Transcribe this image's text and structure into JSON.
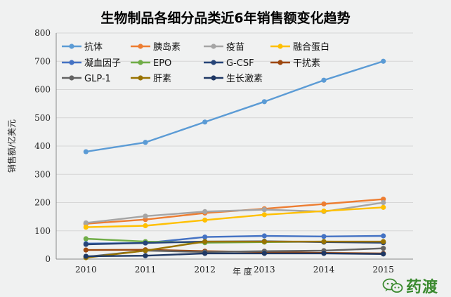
{
  "chart_data": {
    "type": "line",
    "title": "生物制品各细分品类近6年销售额变化趋势",
    "xlabel": "年  度",
    "ylabel": "销售额/亿美元",
    "ylim": [
      0,
      800
    ],
    "yticks": [
      0,
      100,
      200,
      300,
      400,
      500,
      600,
      700,
      800
    ],
    "categories": [
      "2010",
      "2011",
      "2012",
      "2013",
      "2014",
      "2015"
    ],
    "grid": "horizontal",
    "legend_position": "top-left",
    "series": [
      {
        "name": "抗体",
        "color": "#5b9bd5",
        "values": [
          380,
          413,
          485,
          557,
          633,
          700
        ]
      },
      {
        "name": "胰岛素",
        "color": "#ed7d31",
        "values": [
          125,
          140,
          163,
          178,
          195,
          212
        ]
      },
      {
        "name": "疫苗",
        "color": "#a5a5a5",
        "values": [
          128,
          152,
          168,
          175,
          168,
          200
        ]
      },
      {
        "name": "融合蛋白",
        "color": "#ffc000",
        "values": [
          113,
          118,
          138,
          157,
          170,
          183
        ]
      },
      {
        "name": "凝血因子",
        "color": "#4472c4",
        "values": [
          55,
          57,
          78,
          82,
          80,
          82
        ]
      },
      {
        "name": "EPO",
        "color": "#70ad47",
        "values": [
          72,
          62,
          58,
          60,
          62,
          60
        ]
      },
      {
        "name": "G-CSF",
        "color": "#264478",
        "values": [
          52,
          57,
          62,
          63,
          60,
          58
        ]
      },
      {
        "name": "干扰素",
        "color": "#9e480e",
        "values": [
          32,
          33,
          28,
          25,
          22,
          20
        ]
      },
      {
        "name": "GLP-1",
        "color": "#636363",
        "values": [
          8,
          30,
          25,
          28,
          30,
          38
        ]
      },
      {
        "name": "肝素",
        "color": "#997300",
        "values": [
          5,
          30,
          62,
          62,
          62,
          62
        ]
      },
      {
        "name": "生长激素",
        "color": "#1f3864",
        "values": [
          10,
          12,
          20,
          20,
          20,
          18
        ]
      }
    ]
  },
  "watermark": {
    "text": "药渡",
    "icon": "wechat-icon",
    "color": "#3b8a2f"
  }
}
